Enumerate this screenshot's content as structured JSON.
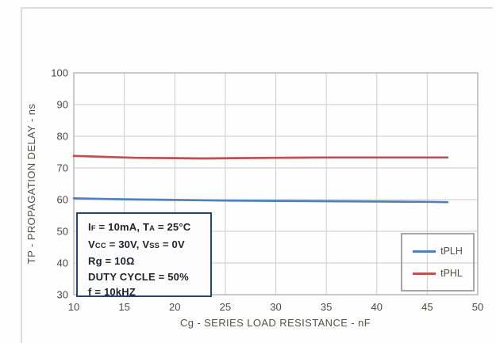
{
  "chart_data": {
    "type": "line",
    "title": "",
    "xlabel": "Cg - SERIES LOAD RESISTANCE - nF",
    "ylabel": "TP - PROPAGATION DELAY - ns",
    "xlim": [
      10,
      50
    ],
    "ylim": [
      30,
      100
    ],
    "xticks": [
      10,
      15,
      20,
      25,
      30,
      35,
      40,
      45,
      50
    ],
    "yticks": [
      100,
      90,
      80,
      70,
      60,
      50,
      40,
      30
    ],
    "grid": true,
    "gridline_color": "#cbcbcb",
    "frame_color": "#b3b3b3",
    "legend_position": "inside-bottom-right",
    "series": [
      {
        "name": "tPLH",
        "color": "#4f81bd",
        "x": [
          10,
          15,
          20,
          25,
          30,
          35,
          40,
          45,
          47
        ],
        "y": [
          60.4,
          60.1,
          59.9,
          59.7,
          59.6,
          59.5,
          59.4,
          59.3,
          59.2
        ]
      },
      {
        "name": "tPHL",
        "color": "#c0504d",
        "x": [
          10,
          13,
          16,
          20,
          23,
          26,
          30,
          35,
          40,
          45,
          47
        ],
        "y": [
          73.8,
          73.5,
          73.2,
          73.1,
          73.0,
          73.1,
          73.2,
          73.3,
          73.3,
          73.3,
          73.3
        ]
      }
    ],
    "annotation": {
      "lines": [
        {
          "segments": [
            {
              "t": "I"
            },
            {
              "t": "F",
              "sub": true
            },
            {
              "t": " = 10mA, T"
            },
            {
              "t": "A",
              "sub": true
            },
            {
              "t": " = 25°C"
            }
          ]
        },
        {
          "segments": [
            {
              "t": "V"
            },
            {
              "t": "CC",
              "sub": true
            },
            {
              "t": " = 30V, V"
            },
            {
              "t": "SS",
              "sub": true
            },
            {
              "t": " = 0V"
            }
          ]
        },
        {
          "segments": [
            {
              "t": "Rg = 10Ω"
            }
          ]
        },
        {
          "segments": [
            {
              "t": "DUTY CYCLE = 50%"
            }
          ]
        },
        {
          "segments": [
            {
              "t": "f = 10kHZ"
            }
          ]
        }
      ]
    }
  }
}
